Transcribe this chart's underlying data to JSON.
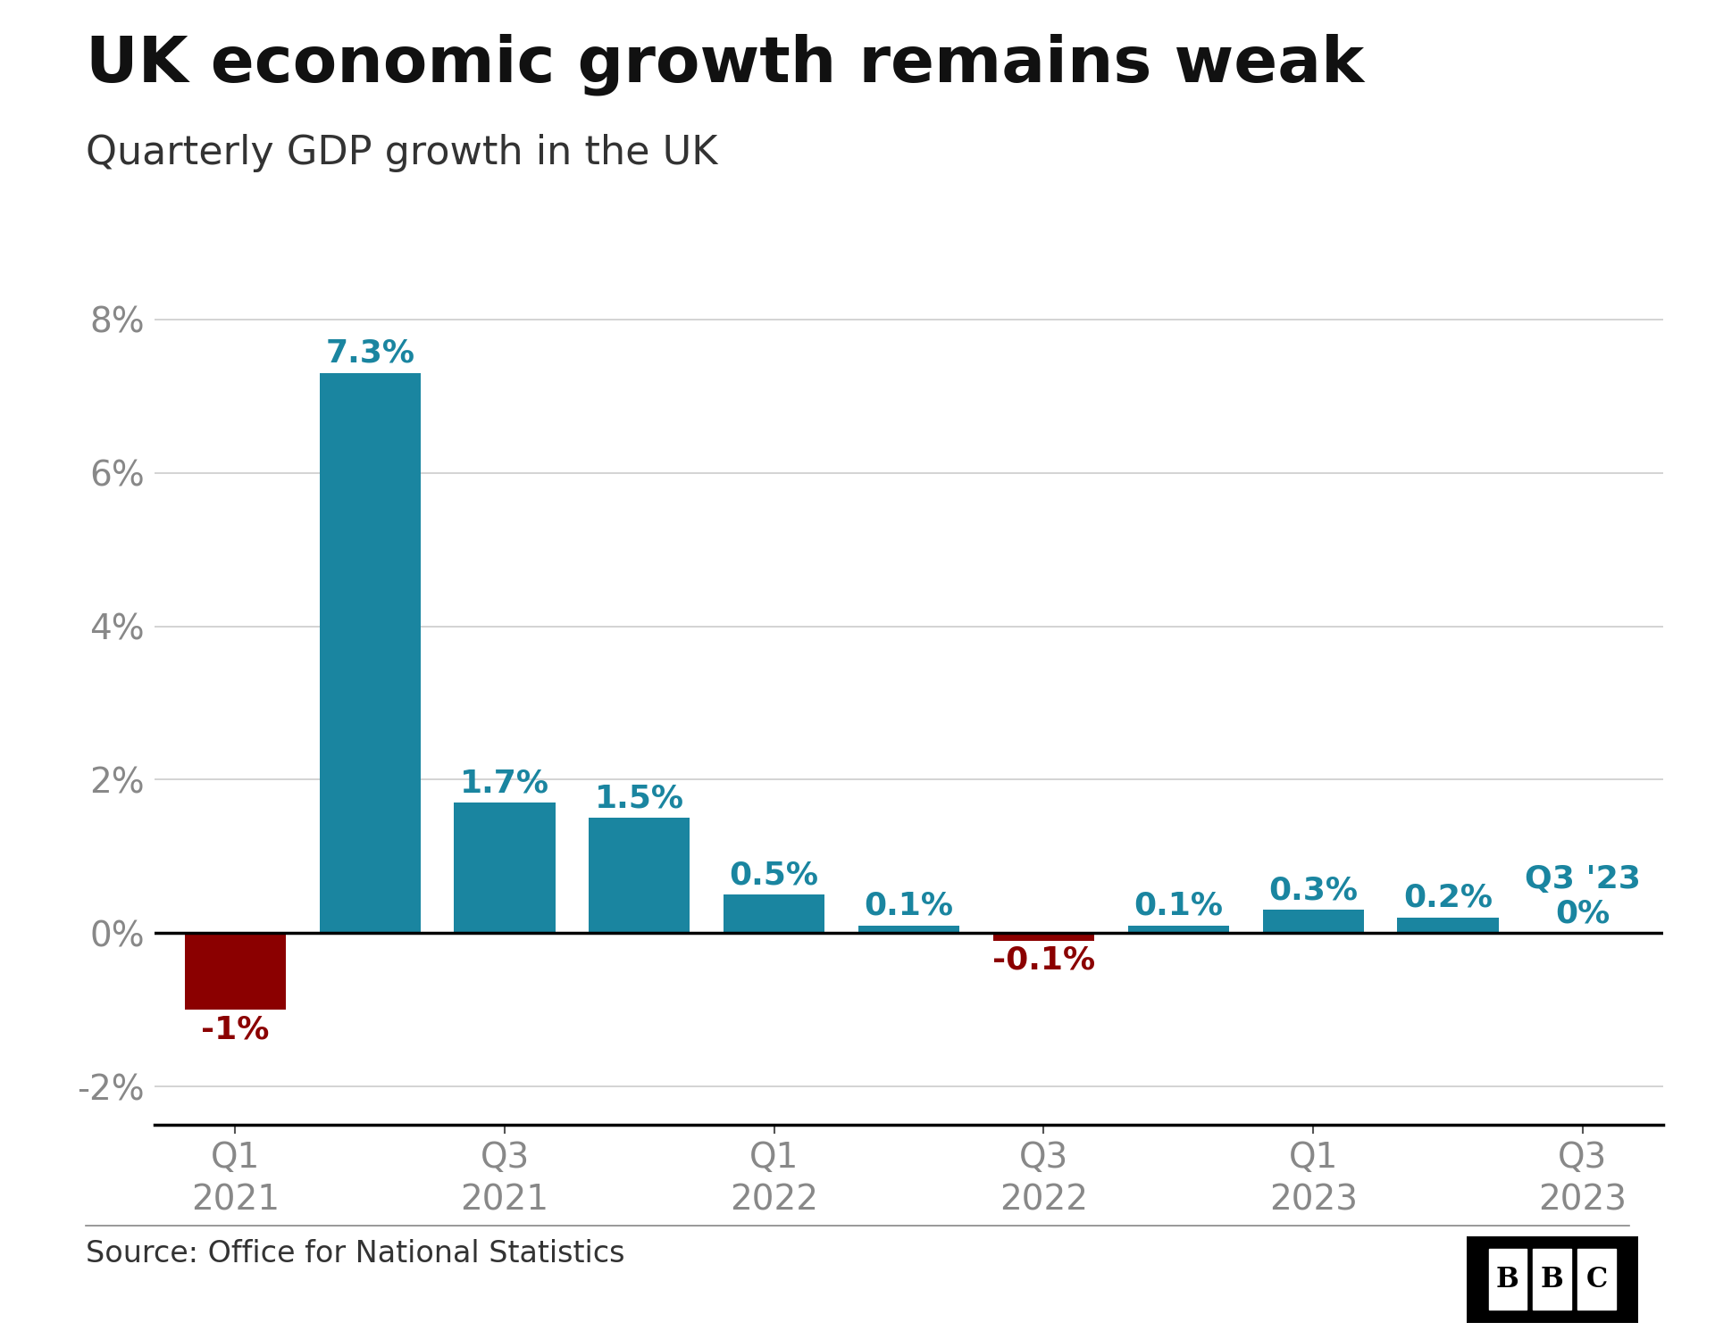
{
  "title": "UK economic growth remains weak",
  "subtitle": "Quarterly GDP growth in the UK",
  "source": "Source: Office for National Statistics",
  "x_tick_labels": [
    "Q1\n2021",
    "Q3\n2021",
    "Q1\n2022",
    "Q3\n2022",
    "Q1\n2023",
    "Q3\n2023"
  ],
  "x_tick_positions": [
    0,
    2,
    4,
    6,
    8,
    10
  ],
  "values": [
    -1.0,
    7.3,
    1.7,
    1.5,
    0.5,
    0.1,
    -0.1,
    0.1,
    0.3,
    0.2,
    0.0
  ],
  "bar_labels": [
    "-1%",
    "7.3%",
    "1.7%",
    "1.5%",
    "0.5%",
    "0.1%",
    "-0.1%",
    "0.1%",
    "0.3%",
    "0.2%",
    "Q3 '23\n0%"
  ],
  "bar_colors_positive": "#1a85a0",
  "bar_colors_negative": "#8b0000",
  "label_color_positive": "#1a85a0",
  "label_color_negative": "#8b0000",
  "ylim": [
    -2.5,
    8.5
  ],
  "yticks": [
    -2,
    0,
    2,
    4,
    6,
    8
  ],
  "ytick_labels": [
    "-2%",
    "0%",
    "2%",
    "4%",
    "6%",
    "8%"
  ],
  "background_color": "#ffffff",
  "grid_color": "#cccccc",
  "title_fontsize": 52,
  "subtitle_fontsize": 32,
  "axis_fontsize": 28,
  "bar_label_fontsize": 26,
  "source_fontsize": 24,
  "bar_width": 0.75,
  "num_bars": 11
}
